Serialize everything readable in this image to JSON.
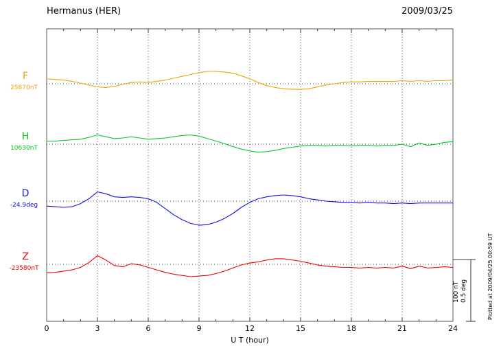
{
  "header": {
    "title": "Hermanus (HER)",
    "date": "2009/03/25"
  },
  "axis": {
    "xlabel": "U T (hour)"
  },
  "scale_bar": {
    "nT_label": "100 nT",
    "deg_label": "0.5 deg"
  },
  "footnote": "Plotted at 2009/04/25 00:59 UT",
  "chart_data": {
    "type": "line",
    "title": "Hermanus (HER)",
    "date": "2009/03/25",
    "xlabel": "U T (hour)",
    "xlim": [
      0,
      24
    ],
    "x_ticks": [
      0,
      3,
      6,
      9,
      12,
      15,
      18,
      21,
      24
    ],
    "x_step_hours": 0.5,
    "grid": "dotted vertical lines every 3 hours; dotted horizontal baseline per component",
    "legend_position": "left margin",
    "scale": {
      "bar_nT": 100,
      "bar_deg": 0.5
    },
    "series": [
      {
        "name": "F",
        "unit": "nT",
        "baseline_value": 25870,
        "baseline_label": "25870nT",
        "color": "#f0a202",
        "offsets_from_baseline": [
          8,
          7,
          6,
          4,
          1,
          -2,
          -5,
          -6,
          -4,
          -1,
          2,
          3,
          2,
          4,
          6,
          9,
          12,
          15,
          18,
          20,
          20,
          19,
          17,
          13,
          8,
          2,
          -3,
          -6,
          -8,
          -9,
          -9,
          -8,
          -5,
          -2,
          0,
          2,
          3,
          3,
          4,
          4,
          4,
          4,
          5,
          4,
          5,
          4,
          5,
          5,
          6
        ]
      },
      {
        "name": "H",
        "unit": "nT",
        "baseline_value": 10630,
        "baseline_label": "10630nT",
        "color": "#00c81e",
        "offsets_from_baseline": [
          5,
          5,
          6,
          7,
          8,
          11,
          15,
          12,
          9,
          10,
          12,
          10,
          8,
          9,
          10,
          12,
          14,
          15,
          13,
          9,
          5,
          1,
          -4,
          -8,
          -11,
          -13,
          -12,
          -10,
          -7,
          -5,
          -3,
          -2,
          -2,
          -3,
          -2,
          -2,
          -3,
          -2,
          -2,
          -3,
          -2,
          -2,
          0,
          -4,
          2,
          -2,
          0,
          3,
          4
        ]
      },
      {
        "name": "D",
        "unit": "deg",
        "baseline_value": -24.9,
        "baseline_label": "-24.9deg",
        "color": "#1010e0",
        "offsets_from_baseline": [
          -0.04,
          -0.045,
          -0.05,
          -0.045,
          -0.02,
          0.02,
          0.075,
          0.06,
          0.035,
          0.03,
          0.035,
          0.03,
          0.02,
          -0.01,
          -0.06,
          -0.11,
          -0.15,
          -0.18,
          -0.195,
          -0.19,
          -0.17,
          -0.14,
          -0.1,
          -0.05,
          -0.01,
          0.02,
          0.035,
          0.045,
          0.05,
          0.045,
          0.035,
          0.02,
          0.01,
          0,
          -0.005,
          -0.01,
          -0.01,
          -0.015,
          -0.01,
          -0.015,
          -0.015,
          -0.02,
          -0.015,
          -0.02,
          -0.015,
          -0.015,
          -0.015,
          -0.015,
          -0.015
        ]
      },
      {
        "name": "Z",
        "unit": "nT",
        "baseline_value": -23580,
        "baseline_label": "-23580nT",
        "color": "#ee0000",
        "offsets_from_baseline": [
          -14,
          -13,
          -11,
          -9,
          -5,
          3,
          14,
          7,
          -2,
          -4,
          1,
          -1,
          -5,
          -9,
          -13,
          -16,
          -18,
          -20,
          -19,
          -18,
          -15,
          -11,
          -6,
          -1,
          2,
          4,
          7,
          9,
          9,
          7,
          5,
          2,
          -1,
          -3,
          -4,
          -5,
          -5,
          -6,
          -5,
          -6,
          -5,
          -6,
          -3,
          -7,
          -3,
          -6,
          -5,
          -4,
          -5
        ]
      }
    ]
  }
}
